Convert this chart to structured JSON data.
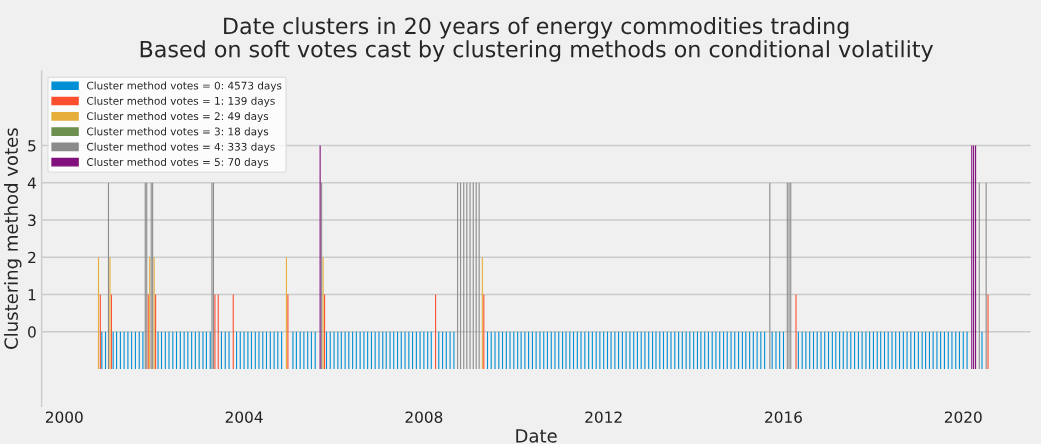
{
  "chart_data": {
    "type": "bar",
    "title": "Date clusters in 20 years of energy commodities trading\nBased on soft votes cast by clustering methods on conditional volatility",
    "xlabel": "Date",
    "ylabel": "Clustering method votes",
    "xlim": [
      "1999-07",
      "2021-07"
    ],
    "xticks": [
      "2000",
      "2004",
      "2008",
      "2012",
      "2016",
      "2020"
    ],
    "ylim": [
      -2,
      7
    ],
    "yticks": [
      0,
      1,
      2,
      3,
      4,
      5
    ],
    "grid": "y",
    "legend": "top left",
    "series": [
      {
        "name": "Cluster method votes = 0: 4573 days",
        "color": "#008fd5",
        "x": [
          "2000-11",
          "2000-12",
          "2001-02",
          "2001-03",
          "2001-04",
          "2001-05",
          "2001-06",
          "2001-07",
          "2001-08",
          "2001-09",
          "2001-10",
          "2002-02",
          "2002-03",
          "2002-04",
          "2002-05",
          "2002-06",
          "2002-07",
          "2002-08",
          "2002-09",
          "2002-10",
          "2002-11",
          "2002-12",
          "2003-01",
          "2003-02",
          "2003-03",
          "2003-04",
          "2003-07",
          "2003-08",
          "2003-09",
          "2003-11",
          "2003-12",
          "2004-01",
          "2004-02",
          "2004-03",
          "2004-04",
          "2004-05",
          "2004-06",
          "2004-07",
          "2004-08",
          "2004-09",
          "2004-10",
          "2004-11",
          "2005-02",
          "2005-03",
          "2005-04",
          "2005-05",
          "2005-06",
          "2005-07",
          "2005-08",
          "2005-11",
          "2005-12",
          "2006-01",
          "2006-02",
          "2006-03",
          "2006-04",
          "2006-05",
          "2006-06",
          "2006-07",
          "2006-08",
          "2006-09",
          "2006-10",
          "2006-11",
          "2006-12",
          "2007-01",
          "2007-02",
          "2007-03",
          "2007-04",
          "2007-05",
          "2007-06",
          "2007-07",
          "2007-08",
          "2007-09",
          "2007-10",
          "2007-11",
          "2007-12",
          "2008-01",
          "2008-02",
          "2008-03",
          "2008-05",
          "2008-06",
          "2008-07",
          "2008-08",
          "2008-09",
          "2009-06",
          "2009-07",
          "2009-08",
          "2009-09",
          "2009-10",
          "2009-11",
          "2009-12",
          "2010-01",
          "2010-02",
          "2010-03",
          "2010-04",
          "2010-05",
          "2010-06",
          "2010-07",
          "2010-08",
          "2010-09",
          "2010-10",
          "2010-11",
          "2010-12",
          "2011-01",
          "2011-02",
          "2011-03",
          "2011-04",
          "2011-05",
          "2011-06",
          "2011-07",
          "2011-08",
          "2011-09",
          "2011-10",
          "2011-11",
          "2011-12",
          "2012-01",
          "2012-02",
          "2012-03",
          "2012-04",
          "2012-05",
          "2012-06",
          "2012-07",
          "2012-08",
          "2012-09",
          "2012-10",
          "2012-11",
          "2012-12",
          "2013-01",
          "2013-02",
          "2013-03",
          "2013-04",
          "2013-05",
          "2013-06",
          "2013-07",
          "2013-08",
          "2013-09",
          "2013-10",
          "2013-11",
          "2013-12",
          "2014-01",
          "2014-02",
          "2014-03",
          "2014-04",
          "2014-05",
          "2014-06",
          "2014-07",
          "2014-08",
          "2014-09",
          "2014-10",
          "2014-11",
          "2014-12",
          "2015-01",
          "2015-02",
          "2015-03",
          "2015-04",
          "2015-05",
          "2015-06",
          "2015-07",
          "2015-08",
          "2015-10",
          "2015-11",
          "2015-12",
          "2016-01",
          "2016-05",
          "2016-06",
          "2016-07",
          "2016-08",
          "2016-09",
          "2016-10",
          "2016-11",
          "2016-12",
          "2017-01",
          "2017-02",
          "2017-03",
          "2017-04",
          "2017-05",
          "2017-06",
          "2017-07",
          "2017-08",
          "2017-09",
          "2017-10",
          "2017-11",
          "2017-12",
          "2018-01",
          "2018-02",
          "2018-03",
          "2018-04",
          "2018-05",
          "2018-06",
          "2018-07",
          "2018-08",
          "2018-09",
          "2018-10",
          "2018-11",
          "2018-12",
          "2019-01",
          "2019-02",
          "2019-03",
          "2019-04",
          "2019-05",
          "2019-06",
          "2019-07",
          "2019-08",
          "2019-09",
          "2019-10",
          "2019-11",
          "2019-12",
          "2020-01",
          "2020-02",
          "2020-06"
        ],
        "base": [
          -1,
          -1,
          -1,
          -1,
          -1,
          -1,
          -1,
          -1,
          -1,
          -1,
          -1,
          -1,
          -1,
          -1,
          -1,
          -1,
          -1,
          -1,
          -1,
          -1,
          -1,
          -1,
          -1,
          -1,
          -1,
          -1,
          -1,
          -1,
          -1,
          -1,
          -1,
          -1,
          -1,
          -1,
          -1,
          -1,
          -1,
          -1,
          -1,
          -1,
          -1,
          -1,
          -1,
          -1,
          -1,
          -1,
          -1,
          -1,
          -1,
          -1,
          -1,
          -1,
          -1,
          -1,
          -1,
          -1,
          -1,
          -1,
          -1,
          -1,
          -1,
          -1,
          -1,
          -1,
          -1,
          -1,
          -1,
          -1,
          -1,
          -1,
          -1,
          -1,
          -1,
          -1,
          -1,
          -1,
          -1,
          -1,
          -1,
          -1,
          -1,
          -1,
          -1,
          -1,
          -1,
          -1,
          -1,
          -1,
          -1,
          -1,
          -1,
          -1,
          -1,
          -1,
          -1,
          -1,
          -1,
          -1,
          -1,
          -1,
          -1,
          -1,
          -1,
          -1,
          -1,
          -1,
          -1,
          -1,
          -1,
          -1,
          -1,
          -1,
          -1,
          -1,
          -1,
          -1,
          -1,
          -1,
          -1,
          -1,
          -1,
          -1,
          -1,
          -1,
          -1,
          -1,
          -1,
          -1,
          -1,
          -1,
          -1,
          -1,
          -1,
          -1,
          -1,
          -1,
          -1,
          -1,
          -1,
          -1,
          -1,
          -1,
          -1,
          -1,
          -1,
          -1,
          -1,
          -1,
          -1,
          -1,
          -1,
          -1,
          -1,
          -1,
          -1,
          -1,
          -1,
          -1,
          -1,
          -1,
          -1,
          -1,
          -1,
          -1,
          -1,
          -1,
          -1,
          -1,
          -1,
          -1,
          -1,
          -1,
          -1,
          -1,
          -1,
          -1,
          -1,
          -1,
          -1,
          -1,
          -1,
          -1,
          -1,
          -1,
          -1,
          -1,
          -1,
          -1,
          -1,
          -1,
          -1,
          -1,
          -1,
          -1,
          -1,
          -1,
          -1,
          -1,
          -1,
          -1,
          -1,
          -1,
          -1,
          -1,
          -1,
          -1,
          -1,
          -1,
          -1
        ],
        "values": [
          1,
          1,
          1,
          1,
          1,
          1,
          1,
          1,
          1,
          1,
          1,
          1,
          1,
          1,
          1,
          1,
          1,
          1,
          1,
          1,
          1,
          1,
          1,
          1,
          1,
          1,
          1,
          1,
          1,
          1,
          1,
          1,
          1,
          1,
          1,
          1,
          1,
          1,
          1,
          1,
          1,
          1,
          1,
          1,
          1,
          1,
          1,
          1,
          1,
          1,
          1,
          1,
          1,
          1,
          1,
          1,
          1,
          1,
          1,
          1,
          1,
          1,
          1,
          1,
          1,
          1,
          1,
          1,
          1,
          1,
          1,
          1,
          1,
          1,
          1,
          1,
          1,
          1,
          1,
          1,
          1,
          1,
          1,
          1,
          1,
          1,
          1,
          1,
          1,
          1,
          1,
          1,
          1,
          1,
          1,
          1,
          1,
          1,
          1,
          1,
          1,
          1,
          1,
          1,
          1,
          1,
          1,
          1,
          1,
          1,
          1,
          1,
          1,
          1,
          1,
          1,
          1,
          1,
          1,
          1,
          1,
          1,
          1,
          1,
          1,
          1,
          1,
          1,
          1,
          1,
          1,
          1,
          1,
          1,
          1,
          1,
          1,
          1,
          1,
          1,
          1,
          1,
          1,
          1,
          1,
          1,
          1,
          1,
          1,
          1,
          1,
          1,
          1,
          1,
          1,
          1,
          1,
          1,
          1,
          1,
          1,
          1,
          1,
          1,
          1,
          1,
          1,
          1,
          1,
          1,
          1,
          1,
          1,
          1,
          1,
          1,
          1,
          1,
          1,
          1,
          1,
          1,
          1,
          1,
          1,
          1,
          1,
          1,
          1,
          1,
          1,
          1,
          1,
          1,
          1,
          1,
          1,
          1,
          1,
          1,
          1,
          1,
          1,
          1,
          1,
          1,
          1,
          1,
          1
        ]
      },
      {
        "name": "Cluster method votes = 1: 139 days",
        "color": "#fc4f30",
        "x": [
          "2000-10-20",
          "2001-01-18",
          "2001-11-13",
          "2002-01-12",
          "2003-05-09",
          "2003-06-05",
          "2003-10-05",
          "2004-12-22",
          "2005-10-16",
          "2008-04-05",
          "2009-05-02",
          "2016-04-12",
          "2020-07-20"
        ],
        "base": [
          -1,
          -1,
          -1,
          -1,
          -1,
          -1,
          -1,
          -1,
          -1,
          -1,
          -1,
          -1,
          -1
        ],
        "values": [
          2,
          2,
          2,
          2,
          2,
          2,
          2,
          2,
          2,
          2,
          2,
          2,
          2
        ]
      },
      {
        "name": "Cluster method votes = 2: 49 days",
        "color": "#e5ae38",
        "x": [
          "2000-10-05",
          "2001-01-06",
          "2001-11-25",
          "2001-12-31",
          "2004-12-10",
          "2005-10-04",
          "2009-04-20"
        ],
        "base": [
          -1,
          -1,
          -1,
          -1,
          -1,
          -1,
          -1
        ],
        "values": [
          3,
          3,
          3,
          3,
          3,
          3,
          3
        ]
      },
      {
        "name": "Cluster method votes = 3: 18 days",
        "color": "#6d904f"
      },
      {
        "name": "Cluster method votes = 4: 333 days",
        "color": "#8b8b8b",
        "x": [
          "2000-12-25",
          "2001-10-20",
          "2001-11-01",
          "2001-12-07",
          "2001-12-19",
          "2003-04-15",
          "2003-04-27",
          "2005-09-22",
          "2008-10-01",
          "2008-10-25",
          "2008-11-20",
          "2008-12-15",
          "2009-01-10",
          "2009-02-05",
          "2009-03-01",
          "2009-03-25",
          "2015-09-12",
          "2016-02-01",
          "2016-02-15",
          "2016-02-29",
          "2020-05-10",
          "2020-07-05"
        ],
        "base": [
          -1,
          -1,
          -1,
          -1,
          -1,
          -1,
          -1,
          -1,
          -1,
          -1,
          -1,
          -1,
          -1,
          -1,
          -1,
          -1,
          -1,
          -1,
          -1,
          -1,
          -1,
          -1
        ],
        "values": [
          5,
          5,
          5,
          5,
          5,
          5,
          5,
          5,
          5,
          5,
          5,
          5,
          5,
          5,
          5,
          5,
          5,
          5,
          5,
          5,
          5,
          5
        ]
      },
      {
        "name": "Cluster method votes = 5: 70 days",
        "color": "#810f7c",
        "x": [
          "2005-09-10",
          "2020-03-10",
          "2020-03-25",
          "2020-04-10"
        ],
        "base": [
          -1,
          -1,
          -1,
          -1
        ],
        "values": [
          6,
          6,
          6,
          6
        ]
      }
    ]
  }
}
